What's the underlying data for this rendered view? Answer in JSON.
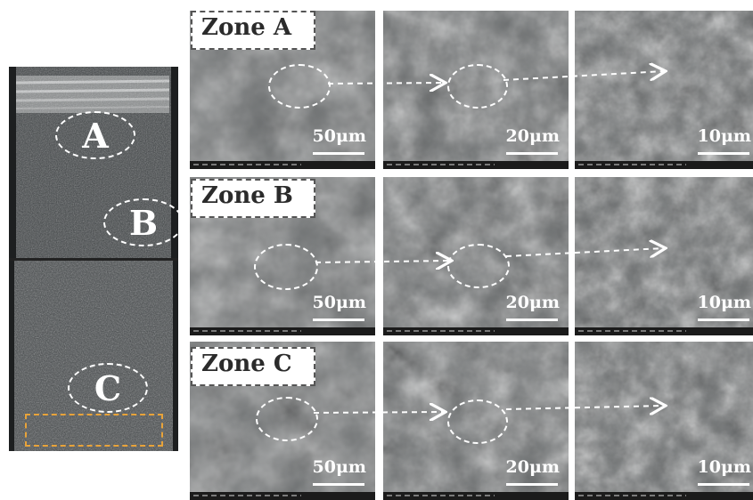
{
  "overview": {
    "zones": [
      "A",
      "B",
      "C"
    ]
  },
  "rows": [
    {
      "zone_label": "Zone A",
      "scales": [
        "50μm",
        "20μm",
        "10μm"
      ]
    },
    {
      "zone_label": "Zone B",
      "scales": [
        "50μm",
        "20μm",
        "10μm"
      ]
    },
    {
      "zone_label": "Zone C",
      "scales": [
        "50μm",
        "20μm",
        "10μm"
      ]
    }
  ],
  "colors": {
    "background": "#ffffff",
    "sem_gray": "#6c6f70",
    "marker_white": "#ffffff",
    "highlight_orange": "#e8a33a"
  }
}
